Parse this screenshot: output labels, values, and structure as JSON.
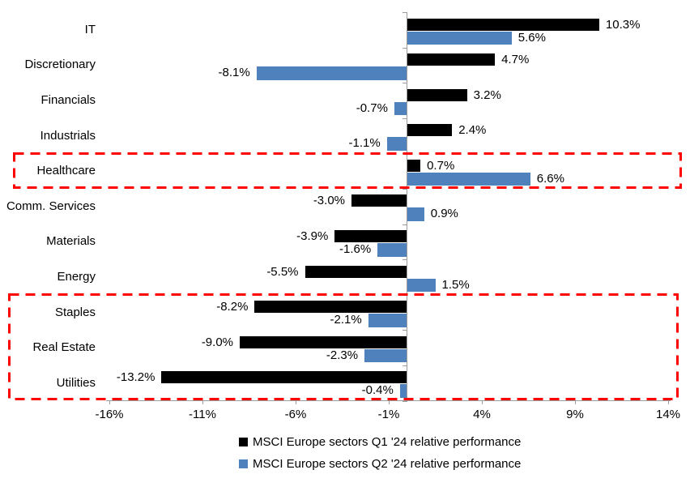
{
  "chart_data": {
    "type": "bar",
    "orientation": "horizontal",
    "title": "",
    "categories": [
      "IT",
      "Discretionary",
      "Financials",
      "Industrials",
      "Healthcare",
      "Comm. Services",
      "Materials",
      "Energy",
      "Staples",
      "Real Estate",
      "Utilities"
    ],
    "series": [
      {
        "name": "MSCI Europe sectors Q1 '24 relative performance",
        "color": "#000000",
        "values": [
          10.3,
          4.7,
          3.2,
          2.4,
          0.7,
          -3.0,
          -3.9,
          -5.5,
          -8.2,
          -9.0,
          -13.2
        ],
        "labels": [
          "10.3%",
          "4.7%",
          "3.2%",
          "2.4%",
          "0.7%",
          "-3.0%",
          "-3.9%",
          "-5.5%",
          "-8.2%",
          "-9.0%",
          "-13.2%"
        ]
      },
      {
        "name": "MSCI Europe sectors Q2 '24 relative performance",
        "color": "#4F81BD",
        "values": [
          5.6,
          -8.1,
          -0.7,
          -1.1,
          6.6,
          0.9,
          -1.6,
          1.5,
          -2.1,
          -2.3,
          -0.4
        ],
        "labels": [
          "5.6%",
          "-8.1%",
          "-0.7%",
          "-1.1%",
          "6.6%",
          "0.9%",
          "-1.6%",
          "1.5%",
          "-2.1%",
          "-2.3%",
          "-0.4%"
        ]
      }
    ],
    "x_axis": {
      "tick_labels": [
        "-16%",
        "-11%",
        "-6%",
        "-1%",
        "4%",
        "9%",
        "14%"
      ],
      "tick_values": [
        -16,
        -11,
        -6,
        -1,
        4,
        9,
        14
      ],
      "min": -16,
      "max": 14,
      "grid": false
    },
    "legend_position": "bottom",
    "highlights": [
      {
        "sectors": [
          "Healthcare"
        ],
        "from_row": 4,
        "to_row": 4,
        "color": "#FF0000",
        "style": "dashed"
      },
      {
        "sectors": [
          "Staples",
          "Real Estate",
          "Utilities"
        ],
        "from_row": 8,
        "to_row": 10,
        "color": "#FF0000",
        "style": "dashed"
      }
    ]
  }
}
